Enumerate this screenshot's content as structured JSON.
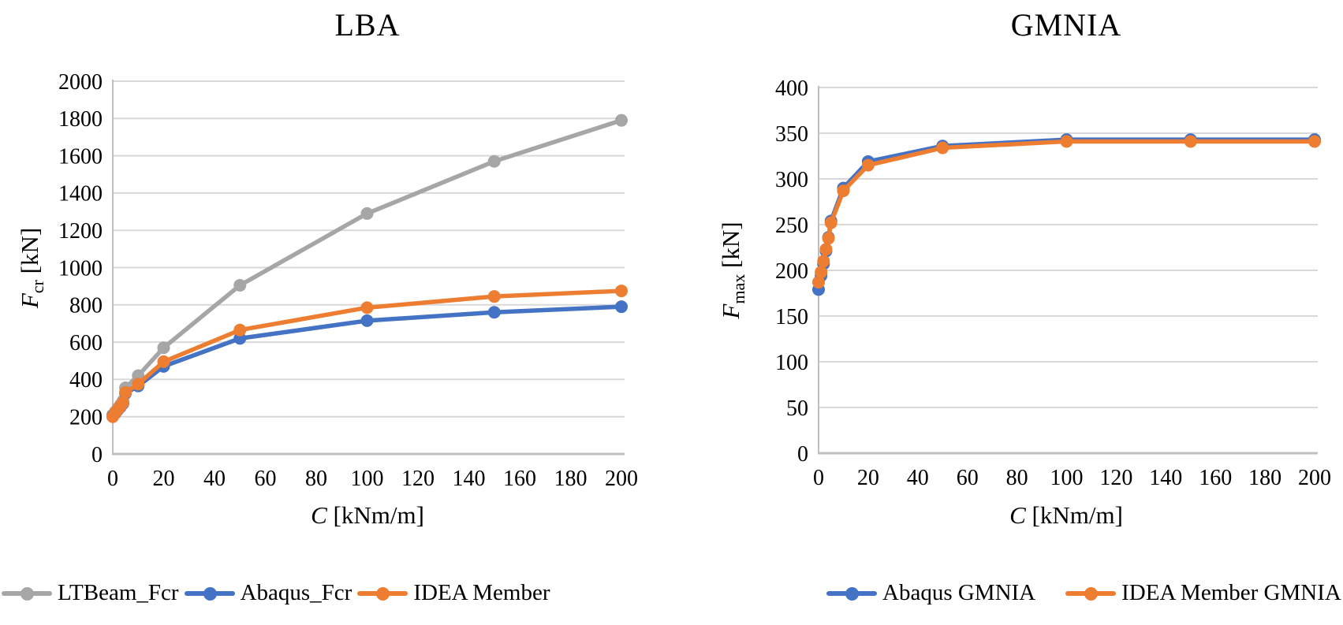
{
  "chart_data": [
    {
      "id": "lba",
      "type": "line",
      "title": "LBA",
      "xlabel": {
        "var": "C",
        "unit": " [kNm/m]"
      },
      "ylabel": {
        "var": "F",
        "sub": "cr",
        "unit": " [kN]"
      },
      "xlim": [
        0,
        200
      ],
      "ylim": [
        0,
        2000
      ],
      "x_ticks": [
        0,
        20,
        40,
        60,
        80,
        100,
        120,
        140,
        160,
        180,
        200
      ],
      "y_ticks": [
        0,
        200,
        400,
        600,
        800,
        1000,
        1200,
        1400,
        1600,
        1800,
        2000
      ],
      "grid": "horizontal",
      "legend_position": "bottom",
      "x": [
        0,
        1,
        2,
        3,
        4,
        5,
        10,
        20,
        50,
        100,
        150,
        200
      ],
      "series": [
        {
          "name": "LTBeam_Fcr",
          "color": "#a6a6a6",
          "values": [
            210,
            227,
            245,
            263,
            285,
            355,
            420,
            570,
            905,
            1290,
            1570,
            1790
          ]
        },
        {
          "name": "Abaqus_Fcr",
          "color": "#4472c4",
          "values": [
            204,
            219,
            236,
            252,
            270,
            325,
            365,
            470,
            620,
            715,
            760,
            790
          ]
        },
        {
          "name": "IDEA Member",
          "color": "#ed7d31",
          "values": [
            200,
            221,
            239,
            256,
            275,
            330,
            375,
            495,
            665,
            785,
            845,
            875
          ]
        }
      ]
    },
    {
      "id": "gmnia",
      "type": "line",
      "title": "GMNIA",
      "xlabel": {
        "var": "C",
        "unit": " [kNm/m]"
      },
      "ylabel": {
        "var": "F",
        "sub": "max",
        "unit": " [kN]"
      },
      "xlim": [
        0,
        200
      ],
      "ylim": [
        0,
        400
      ],
      "x_ticks": [
        0,
        20,
        40,
        60,
        80,
        100,
        120,
        140,
        160,
        180,
        200
      ],
      "y_ticks": [
        0,
        50,
        100,
        150,
        200,
        250,
        300,
        350,
        400
      ],
      "grid": "horizontal",
      "legend_position": "bottom",
      "x": [
        0,
        1,
        2,
        3,
        4,
        5,
        10,
        20,
        50,
        100,
        150,
        200
      ],
      "series": [
        {
          "name": "Abaqus GMNIA",
          "color": "#4472c4",
          "values": [
            179,
            194,
            207,
            221,
            236,
            254,
            290,
            319,
            336,
            343,
            343,
            343
          ]
        },
        {
          "name": "IDEA Member GMNIA",
          "color": "#ed7d31",
          "values": [
            187,
            198,
            210,
            223,
            235,
            252,
            287,
            315,
            334,
            341,
            341,
            341
          ]
        }
      ]
    }
  ],
  "palette": {
    "gridline": "#d9d9d9",
    "axis_line": "#bfbfbf",
    "series_gray": "#a6a6a6",
    "series_blue": "#4472c4",
    "series_orange": "#ed7d31"
  }
}
